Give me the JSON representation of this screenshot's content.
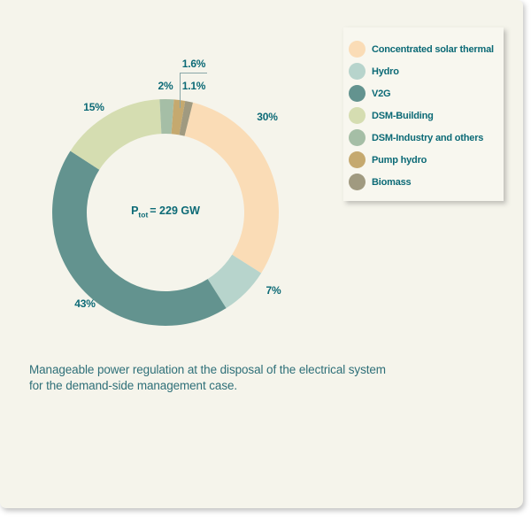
{
  "colors": {
    "page_background": "#ffffff",
    "card_background": "#f5f4eb",
    "legend_background": "#f8f7ef",
    "accent_text": "#0c6a76",
    "caption_text": "#2e6f78",
    "leader_line": "#89a6a7"
  },
  "chart_data": {
    "type": "pie",
    "subtype": "donut",
    "start_angle_deg": 14,
    "center_label": {
      "prefix": "P",
      "subscript": "tot",
      "suffix": "= 229 GW",
      "total_value": "229 GW"
    },
    "legend_position": "top-right",
    "slices": [
      {
        "name": "Concentrated solar thermal",
        "value_pct": 30,
        "label": "30%",
        "color": "#fadcb6"
      },
      {
        "name": "Hydro",
        "value_pct": 7,
        "label": "7%",
        "color": "#b7d4cc"
      },
      {
        "name": "V2G",
        "value_pct": 43,
        "label": "43%",
        "color": "#63938f"
      },
      {
        "name": "DSM-Building",
        "value_pct": 15,
        "label": "15%",
        "color": "#d5ddb1"
      },
      {
        "name": "DSM-Industry and others",
        "value_pct": 2,
        "label": "2%",
        "color": "#a5bea6"
      },
      {
        "name": "Pump hydro",
        "value_pct": 1.6,
        "label": "1.6%",
        "color": "#c5a96f"
      },
      {
        "name": "Biomass",
        "value_pct": 1.1,
        "label": "1.1%",
        "color": "#a09a80"
      }
    ],
    "title": "Manageable power regulation at the disposal of the electrical system for the demand-side management case."
  },
  "caption": {
    "line1": "Manageable power regulation at the disposal of the electrical system",
    "line2": "for the demand-side management case."
  }
}
